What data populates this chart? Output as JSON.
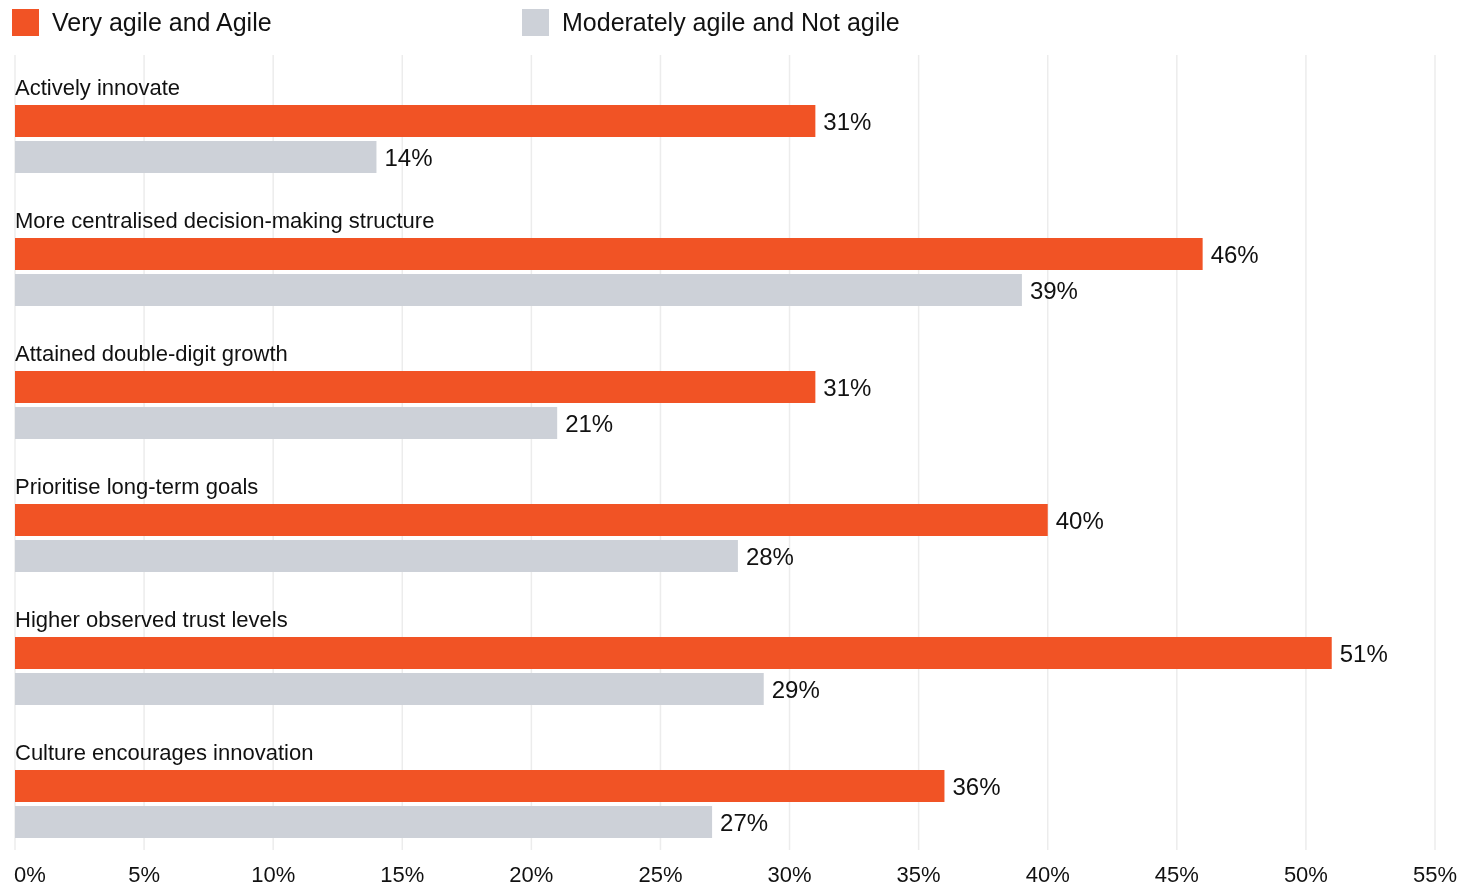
{
  "chart_data": {
    "type": "bar",
    "orientation": "horizontal",
    "categories": [
      "Actively innovate",
      "More centralised decision-making structure",
      "Attained double-digit growth",
      "Prioritise long-term goals",
      "Higher observed trust levels",
      "Culture encourages innovation"
    ],
    "series": [
      {
        "name": "Very agile and Agile",
        "color": "#f15325",
        "values": [
          31,
          46,
          31,
          40,
          51,
          36
        ],
        "value_labels": [
          "31%",
          "46%",
          "31%",
          "40%",
          "51%",
          "36%"
        ]
      },
      {
        "name": "Moderately agile and Not agile",
        "color": "#cdd1d8",
        "values": [
          14,
          39,
          21,
          28,
          29,
          27
        ],
        "value_labels": [
          "14%",
          "39%",
          "21%",
          "28%",
          "29%",
          "27%"
        ]
      }
    ],
    "xlim": [
      0,
      55
    ],
    "xticks": [
      {
        "value": 0,
        "label": "0%"
      },
      {
        "value": 5,
        "label": "5%"
      },
      {
        "value": 10,
        "label": "10%"
      },
      {
        "value": 15,
        "label": "15%"
      },
      {
        "value": 20,
        "label": "20%"
      },
      {
        "value": 25,
        "label": "25%"
      },
      {
        "value": 30,
        "label": "30%"
      },
      {
        "value": 35,
        "label": "35%"
      },
      {
        "value": 40,
        "label": "40%"
      },
      {
        "value": 45,
        "label": "45%"
      },
      {
        "value": 50,
        "label": "50%"
      },
      {
        "value": 55,
        "label": "55%"
      }
    ],
    "grid": "x",
    "legend": "top left"
  }
}
